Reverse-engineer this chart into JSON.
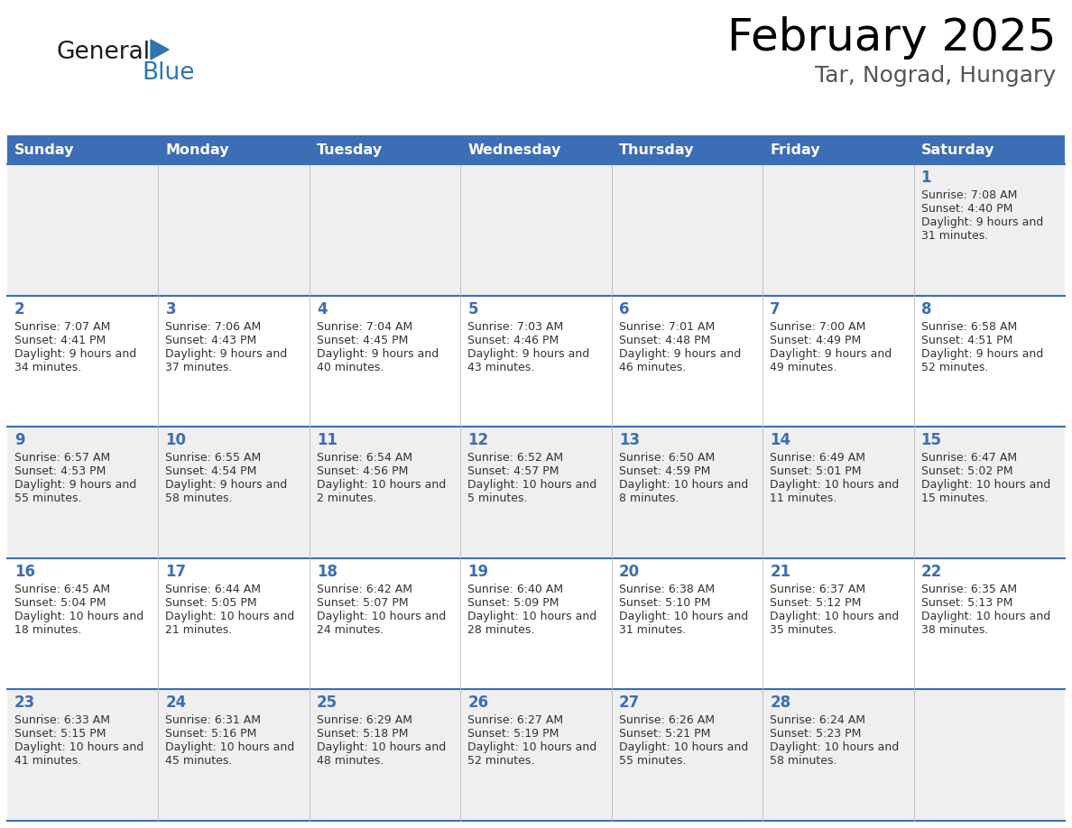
{
  "title": "February 2025",
  "subtitle": "Tar, Nograd, Hungary",
  "days_of_week": [
    "Sunday",
    "Monday",
    "Tuesday",
    "Wednesday",
    "Thursday",
    "Friday",
    "Saturday"
  ],
  "header_bg": "#3B6EB5",
  "header_text_color": "#FFFFFF",
  "cell_bg_even": "#EFEFEF",
  "cell_bg_odd": "#FFFFFF",
  "cell_border_color": "#3B6EB5",
  "day_number_color": "#3B6EB5",
  "text_color": "#333333",
  "logo_general_color": "#1a1a1a",
  "logo_blue_color": "#2E75B6",
  "fig_width": 11.88,
  "fig_height": 9.18,
  "dpi": 100,
  "calendar_data": [
    {
      "day": 1,
      "col": 6,
      "row": 0,
      "sunrise": "7:08 AM",
      "sunset": "4:40 PM",
      "daylight": "9 hours and 31 minutes."
    },
    {
      "day": 2,
      "col": 0,
      "row": 1,
      "sunrise": "7:07 AM",
      "sunset": "4:41 PM",
      "daylight": "9 hours and 34 minutes."
    },
    {
      "day": 3,
      "col": 1,
      "row": 1,
      "sunrise": "7:06 AM",
      "sunset": "4:43 PM",
      "daylight": "9 hours and 37 minutes."
    },
    {
      "day": 4,
      "col": 2,
      "row": 1,
      "sunrise": "7:04 AM",
      "sunset": "4:45 PM",
      "daylight": "9 hours and 40 minutes."
    },
    {
      "day": 5,
      "col": 3,
      "row": 1,
      "sunrise": "7:03 AM",
      "sunset": "4:46 PM",
      "daylight": "9 hours and 43 minutes."
    },
    {
      "day": 6,
      "col": 4,
      "row": 1,
      "sunrise": "7:01 AM",
      "sunset": "4:48 PM",
      "daylight": "9 hours and 46 minutes."
    },
    {
      "day": 7,
      "col": 5,
      "row": 1,
      "sunrise": "7:00 AM",
      "sunset": "4:49 PM",
      "daylight": "9 hours and 49 minutes."
    },
    {
      "day": 8,
      "col": 6,
      "row": 1,
      "sunrise": "6:58 AM",
      "sunset": "4:51 PM",
      "daylight": "9 hours and 52 minutes."
    },
    {
      "day": 9,
      "col": 0,
      "row": 2,
      "sunrise": "6:57 AM",
      "sunset": "4:53 PM",
      "daylight": "9 hours and 55 minutes."
    },
    {
      "day": 10,
      "col": 1,
      "row": 2,
      "sunrise": "6:55 AM",
      "sunset": "4:54 PM",
      "daylight": "9 hours and 58 minutes."
    },
    {
      "day": 11,
      "col": 2,
      "row": 2,
      "sunrise": "6:54 AM",
      "sunset": "4:56 PM",
      "daylight": "10 hours and 2 minutes."
    },
    {
      "day": 12,
      "col": 3,
      "row": 2,
      "sunrise": "6:52 AM",
      "sunset": "4:57 PM",
      "daylight": "10 hours and 5 minutes."
    },
    {
      "day": 13,
      "col": 4,
      "row": 2,
      "sunrise": "6:50 AM",
      "sunset": "4:59 PM",
      "daylight": "10 hours and 8 minutes."
    },
    {
      "day": 14,
      "col": 5,
      "row": 2,
      "sunrise": "6:49 AM",
      "sunset": "5:01 PM",
      "daylight": "10 hours and 11 minutes."
    },
    {
      "day": 15,
      "col": 6,
      "row": 2,
      "sunrise": "6:47 AM",
      "sunset": "5:02 PM",
      "daylight": "10 hours and 15 minutes."
    },
    {
      "day": 16,
      "col": 0,
      "row": 3,
      "sunrise": "6:45 AM",
      "sunset": "5:04 PM",
      "daylight": "10 hours and 18 minutes."
    },
    {
      "day": 17,
      "col": 1,
      "row": 3,
      "sunrise": "6:44 AM",
      "sunset": "5:05 PM",
      "daylight": "10 hours and 21 minutes."
    },
    {
      "day": 18,
      "col": 2,
      "row": 3,
      "sunrise": "6:42 AM",
      "sunset": "5:07 PM",
      "daylight": "10 hours and 24 minutes."
    },
    {
      "day": 19,
      "col": 3,
      "row": 3,
      "sunrise": "6:40 AM",
      "sunset": "5:09 PM",
      "daylight": "10 hours and 28 minutes."
    },
    {
      "day": 20,
      "col": 4,
      "row": 3,
      "sunrise": "6:38 AM",
      "sunset": "5:10 PM",
      "daylight": "10 hours and 31 minutes."
    },
    {
      "day": 21,
      "col": 5,
      "row": 3,
      "sunrise": "6:37 AM",
      "sunset": "5:12 PM",
      "daylight": "10 hours and 35 minutes."
    },
    {
      "day": 22,
      "col": 6,
      "row": 3,
      "sunrise": "6:35 AM",
      "sunset": "5:13 PM",
      "daylight": "10 hours and 38 minutes."
    },
    {
      "day": 23,
      "col": 0,
      "row": 4,
      "sunrise": "6:33 AM",
      "sunset": "5:15 PM",
      "daylight": "10 hours and 41 minutes."
    },
    {
      "day": 24,
      "col": 1,
      "row": 4,
      "sunrise": "6:31 AM",
      "sunset": "5:16 PM",
      "daylight": "10 hours and 45 minutes."
    },
    {
      "day": 25,
      "col": 2,
      "row": 4,
      "sunrise": "6:29 AM",
      "sunset": "5:18 PM",
      "daylight": "10 hours and 48 minutes."
    },
    {
      "day": 26,
      "col": 3,
      "row": 4,
      "sunrise": "6:27 AM",
      "sunset": "5:19 PM",
      "daylight": "10 hours and 52 minutes."
    },
    {
      "day": 27,
      "col": 4,
      "row": 4,
      "sunrise": "6:26 AM",
      "sunset": "5:21 PM",
      "daylight": "10 hours and 55 minutes."
    },
    {
      "day": 28,
      "col": 5,
      "row": 4,
      "sunrise": "6:24 AM",
      "sunset": "5:23 PM",
      "daylight": "10 hours and 58 minutes."
    }
  ]
}
